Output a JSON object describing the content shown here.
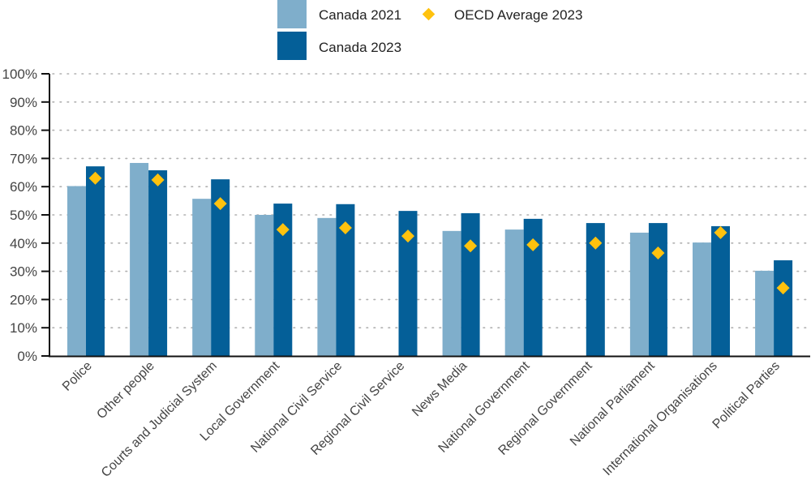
{
  "chart_data": {
    "type": "bar",
    "title": "",
    "xlabel": "",
    "ylabel": "",
    "ylim": [
      0,
      100
    ],
    "yticks": [
      "0%",
      "10%",
      "20%",
      "30%",
      "40%",
      "50%",
      "60%",
      "70%",
      "80%",
      "90%",
      "100%"
    ],
    "grid": true,
    "legend_position": "top-center",
    "categories": [
      "Police",
      "Other people",
      "Courts and Judicial System",
      "Local Government",
      "National Civil Service",
      "Regional Civil Service",
      "News Media",
      "National Government",
      "Regional Government",
      "National Parliament",
      "International Organisations",
      "Political Parties"
    ],
    "series": [
      {
        "name": "Canada 2021",
        "kind": "bar",
        "color": "#7FAECB",
        "values": [
          60.2,
          68.4,
          55.7,
          50.0,
          48.9,
          null,
          44.3,
          44.8,
          null,
          43.7,
          40.2,
          30.2
        ]
      },
      {
        "name": "Canada 2023",
        "kind": "bar",
        "color": "#045F98",
        "values": [
          67.2,
          65.8,
          62.6,
          54.0,
          53.8,
          51.4,
          50.6,
          48.6,
          47.1,
          47.1,
          46.0,
          33.9
        ]
      },
      {
        "name": "OECD Average 2023",
        "kind": "marker",
        "color": "#FFC20E",
        "values": [
          63.0,
          62.4,
          54.0,
          44.8,
          45.4,
          42.5,
          39.0,
          39.4,
          40.0,
          36.5,
          43.7,
          24.1
        ]
      }
    ]
  }
}
